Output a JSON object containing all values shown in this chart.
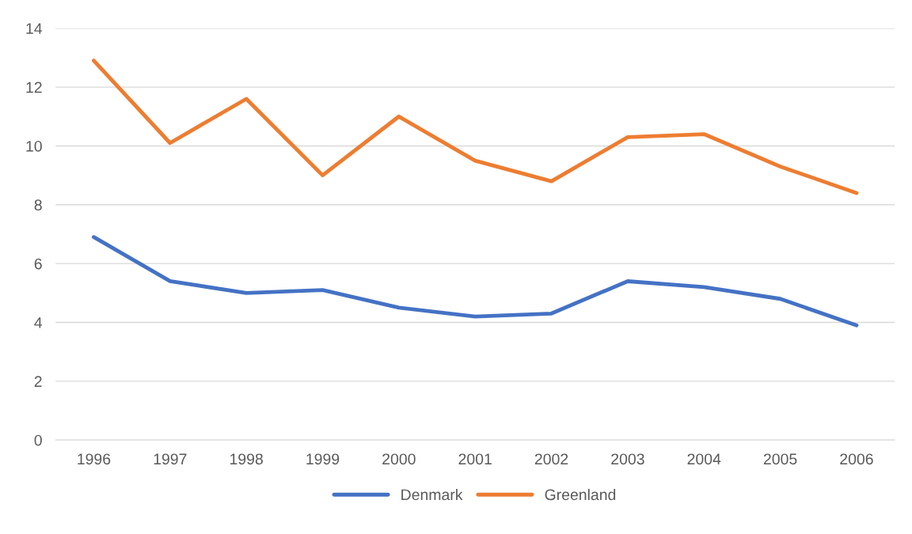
{
  "chart_data": {
    "type": "line",
    "categories": [
      "1996",
      "1997",
      "1998",
      "1999",
      "2000",
      "2001",
      "2002",
      "2003",
      "2004",
      "2005",
      "2006"
    ],
    "series": [
      {
        "name": "Denmark",
        "color": "#4472c4",
        "values": [
          6.9,
          5.4,
          5.0,
          5.1,
          4.5,
          4.2,
          4.3,
          5.4,
          5.2,
          4.8,
          3.9
        ]
      },
      {
        "name": "Greenland",
        "color": "#ed7d31",
        "values": [
          12.9,
          10.1,
          11.6,
          9.0,
          11.0,
          9.5,
          8.8,
          10.3,
          10.4,
          9.3,
          8.4
        ]
      }
    ],
    "ylim": [
      0,
      14
    ],
    "yticks": [
      0,
      2,
      4,
      6,
      8,
      10,
      12,
      14
    ],
    "grid": "y",
    "legend": "bottom",
    "marker": "none",
    "line_style": "solid"
  }
}
